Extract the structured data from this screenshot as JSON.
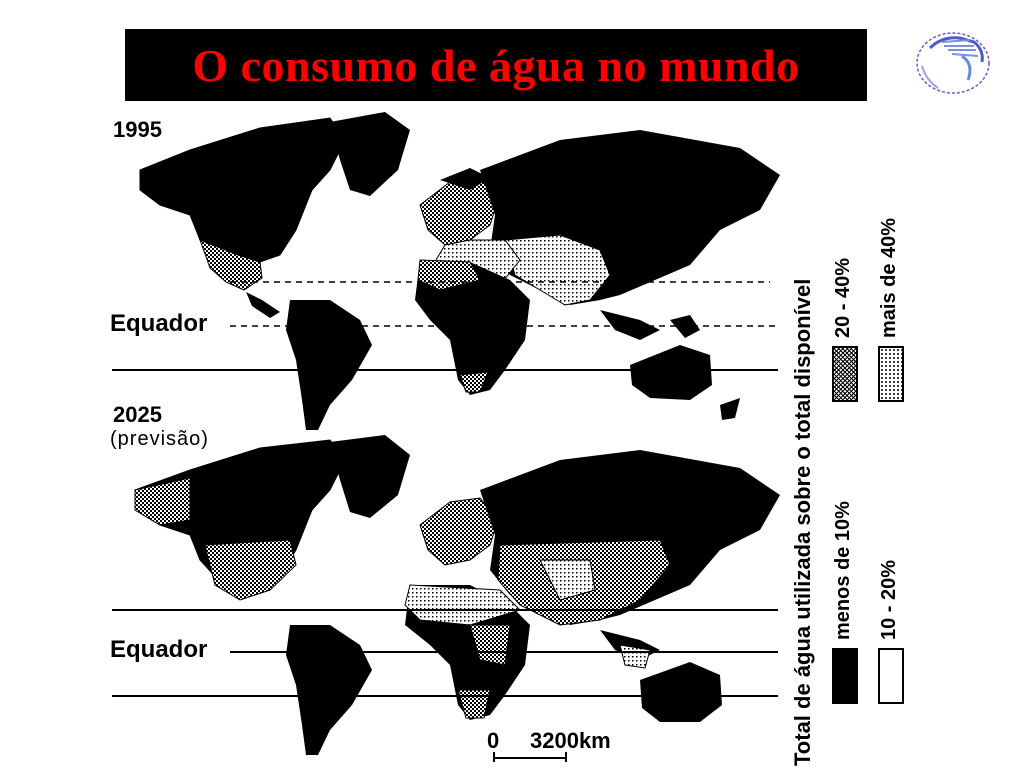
{
  "slide": {
    "title": "O consumo de água no mundo",
    "title_color": "#ff0000",
    "title_background": "#000000"
  },
  "logo": {
    "icon": "globe-icon"
  },
  "maps": [
    {
      "year": "1995",
      "note": "",
      "equator_label": "Equador"
    },
    {
      "year": "2025",
      "note": "(previsão)",
      "equator_label": "Equador"
    }
  ],
  "scale": {
    "start": "0",
    "end": "3200km"
  },
  "legend": {
    "title": "Total de água utilizada sobre o total disponível",
    "items": [
      {
        "label": "menos de 10%",
        "pattern": "solid-black"
      },
      {
        "label": "10 - 20%",
        "pattern": "white"
      },
      {
        "label": "20 - 40%",
        "pattern": "dense-dots"
      },
      {
        "label": "mais de 40%",
        "pattern": "light-dots"
      }
    ]
  }
}
